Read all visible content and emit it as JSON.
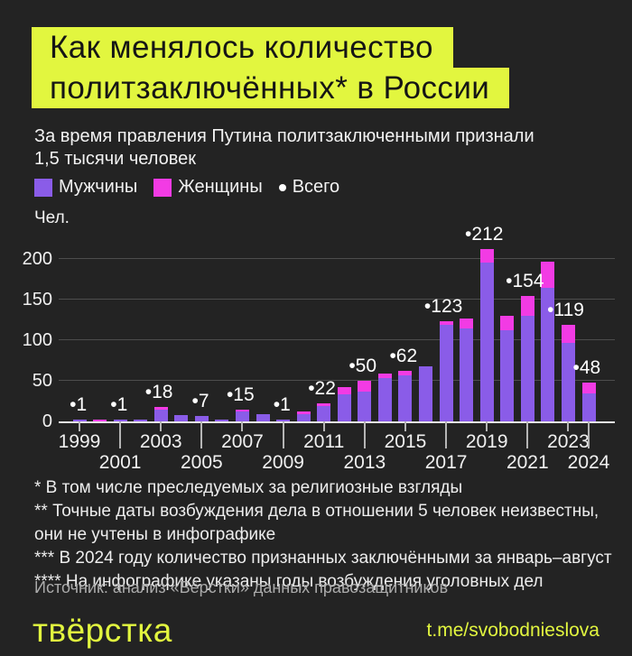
{
  "colors": {
    "background": "#232323",
    "accent_yellow": "#e2f63f",
    "men_purple": "#8a5ce8",
    "women_magenta": "#f23be4",
    "grid_grey": "#4d4d4d",
    "axis_white": "#e6e6e6",
    "text_white": "#f2f2f2",
    "text_grey": "#ababab"
  },
  "title": {
    "line1": "Как менялось количество",
    "line2": "политзаключённых* в России"
  },
  "subtitle": "За время правления Путина политзаключенными признали 1,5 тысячи человек",
  "legend": {
    "men_label": "Мужчины",
    "women_label": "Женщины",
    "total_label": "Всего"
  },
  "chart_data": {
    "type": "bar",
    "stacked": true,
    "unit_label": "Чел.",
    "x": [
      1999,
      2000,
      2001,
      2002,
      2003,
      2004,
      2005,
      2006,
      2007,
      2008,
      2009,
      2010,
      2011,
      2012,
      2013,
      2014,
      2015,
      2016,
      2017,
      2018,
      2019,
      2020,
      2021,
      2022,
      2023,
      2024
    ],
    "series": [
      {
        "name": "Мужчины",
        "color": "#8a5ce8",
        "values": [
          1,
          0,
          1,
          2,
          15,
          8,
          7,
          2,
          12,
          9,
          1,
          9,
          19,
          33,
          37,
          53,
          57,
          68,
          119,
          114,
          196,
          112,
          130,
          165,
          97,
          35
        ]
      },
      {
        "name": "Женщины",
        "color": "#f23be4",
        "values": [
          0,
          2,
          0,
          0,
          3,
          0,
          0,
          0,
          3,
          0,
          0,
          3,
          3,
          9,
          13,
          6,
          5,
          0,
          4,
          13,
          16,
          18,
          24,
          32,
          22,
          13
        ]
      }
    ],
    "totals": [
      1,
      2,
      1,
      2,
      18,
      8,
      7,
      2,
      15,
      9,
      1,
      12,
      22,
      42,
      50,
      59,
      62,
      68,
      123,
      127,
      212,
      130,
      154,
      197,
      119,
      48
    ],
    "annotation_marker": "•",
    "annotated_totals": [
      {
        "year": 1999,
        "value": 1
      },
      {
        "year": 2001,
        "value": 1
      },
      {
        "year": 2003,
        "value": 18
      },
      {
        "year": 2005,
        "value": 7
      },
      {
        "year": 2007,
        "value": 15
      },
      {
        "year": 2009,
        "value": 1
      },
      {
        "year": 2011,
        "value": 22
      },
      {
        "year": 2013,
        "value": 50
      },
      {
        "year": 2015,
        "value": 62
      },
      {
        "year": 2017,
        "value": 123
      },
      {
        "year": 2019,
        "value": 212
      },
      {
        "year": 2021,
        "value": 154
      },
      {
        "year": 2023,
        "value": 119
      },
      {
        "year": 2024,
        "value": 48
      }
    ],
    "ylim": [
      0,
      220
    ],
    "yticks": [
      0,
      50,
      100,
      150,
      200
    ],
    "xtick_rows": [
      [
        1999,
        2003,
        2007,
        2011,
        2015,
        2019,
        2023
      ],
      [
        2001,
        2005,
        2009,
        2013,
        2017,
        2021,
        2024
      ]
    ],
    "grid": "horizontal",
    "legend_position": "top"
  },
  "footnotes": [
    "* В том числе преследуемых за религиозные взгляды",
    "** Точные даты возбуждения дела в отношении 5 человек неизвестны, они не учтены в инфографике",
    "*** В 2024 году количество признанных заключёнными за январь–август",
    "**** На инфографике указаны годы возбуждения уголовных дел"
  ],
  "source": "Источник: анализ «Вёрстки» данных правозащитников",
  "footer": {
    "logo_text": "твёрстка",
    "link_text": "t.me/svobodnieslova"
  }
}
